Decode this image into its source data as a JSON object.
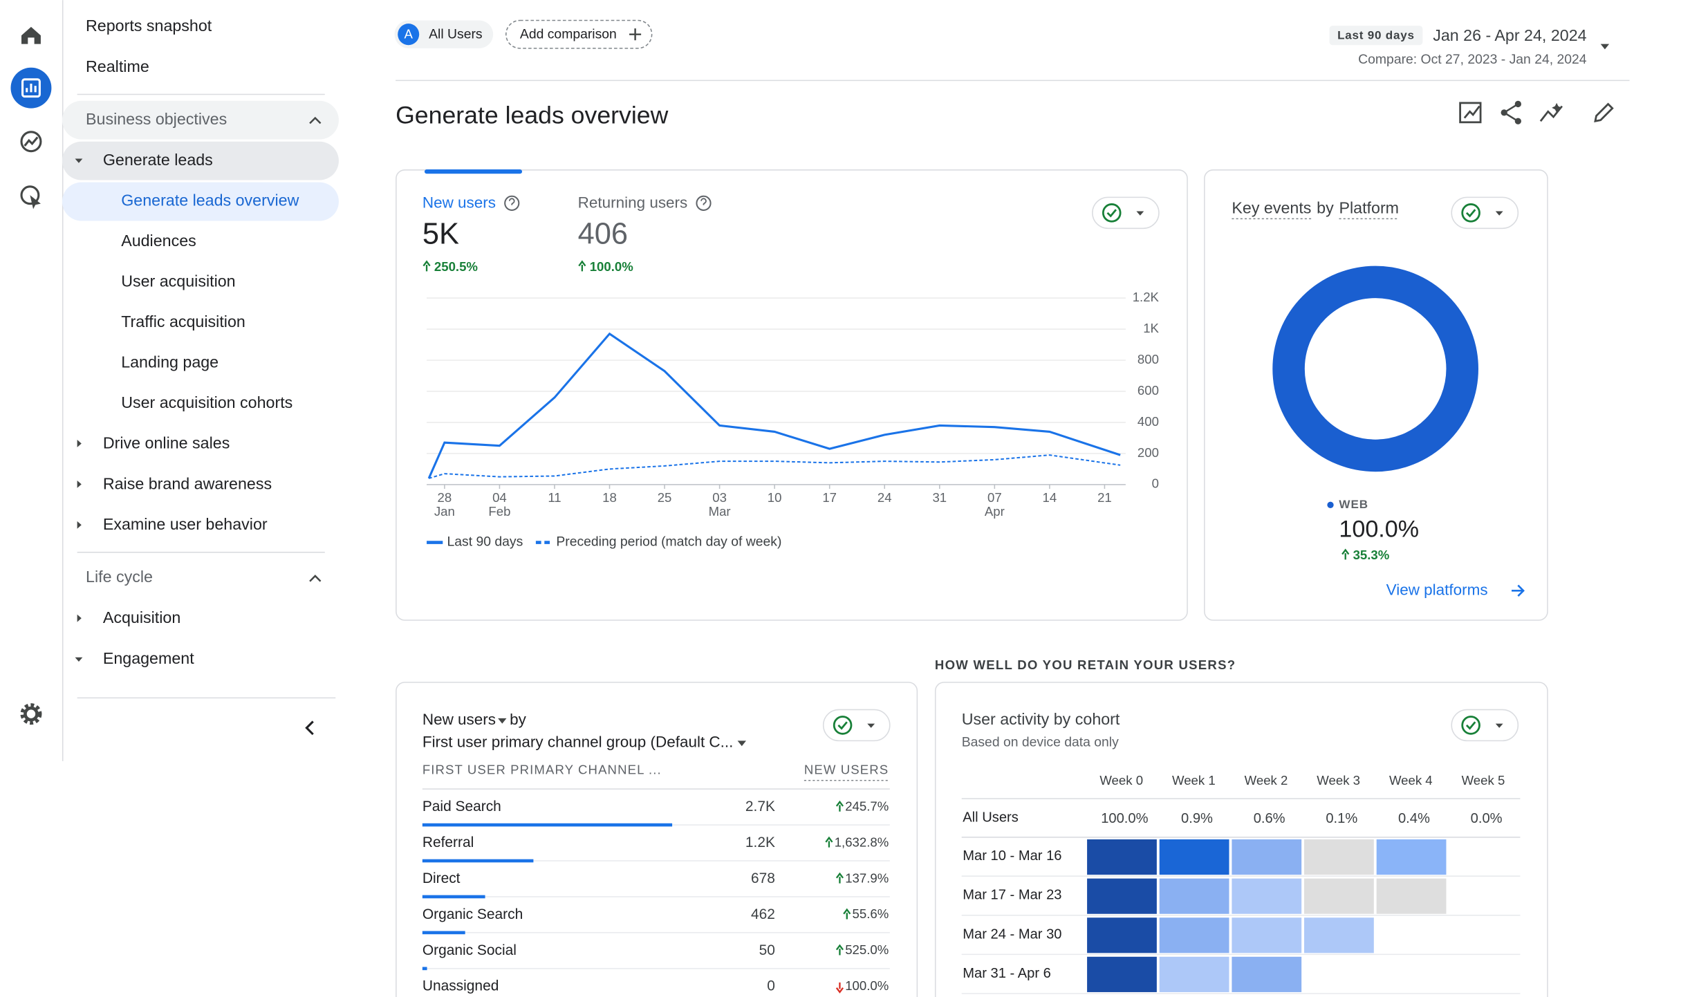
{
  "sidebar": {
    "top": [
      "Reports snapshot",
      "Realtime"
    ],
    "sections": [
      {
        "title": "Business objectives",
        "items": [
          {
            "label": "Generate leads",
            "expanded": true,
            "children": [
              "Generate leads overview",
              "Audiences",
              "User acquisition",
              "Traffic acquisition",
              "Landing page",
              "User acquisition cohorts"
            ]
          },
          {
            "label": "Drive online sales"
          },
          {
            "label": "Raise brand awareness"
          },
          {
            "label": "Examine user behavior"
          }
        ]
      },
      {
        "title": "Life cycle",
        "items": [
          {
            "label": "Acquisition"
          },
          {
            "label": "Engagement",
            "expanded": true
          }
        ]
      }
    ]
  },
  "header": {
    "segment_badge": "A",
    "segment": "All Users",
    "add_comparison": "Add comparison",
    "range_chip": "Last 90 days",
    "date_range": "Jan 26 - Apr 24, 2024",
    "compare": "Compare: Oct 27, 2023 - Jan 24, 2024"
  },
  "title": "Generate leads overview",
  "users_card": {
    "metrics": [
      {
        "label": "New users",
        "value": "5K",
        "change": "250.5%",
        "direction": "up"
      },
      {
        "label": "Returning users",
        "value": "406",
        "change": "100.0%",
        "direction": "up"
      }
    ],
    "chart": {
      "type": "line",
      "x": [
        0,
        2,
        9,
        16,
        23,
        30,
        37,
        44,
        51,
        58,
        65,
        72,
        79,
        88
      ],
      "xlim": [
        0,
        88
      ],
      "xticks": [
        {
          "value": 2,
          "label": "28"
        },
        {
          "value": 9,
          "label": "04"
        },
        {
          "value": 16,
          "label": "11"
        },
        {
          "value": 23,
          "label": "18"
        },
        {
          "value": 30,
          "label": "25"
        },
        {
          "value": 37,
          "label": "03"
        },
        {
          "value": 44,
          "label": "10"
        },
        {
          "value": 51,
          "label": "17"
        },
        {
          "value": 58,
          "label": "24"
        },
        {
          "value": 65,
          "label": "31"
        },
        {
          "value": 72,
          "label": "07"
        },
        {
          "value": 79,
          "label": "14"
        },
        {
          "value": 86,
          "label": "21"
        }
      ],
      "month_labels": [
        {
          "value": 2,
          "label": "Jan"
        },
        {
          "value": 9,
          "label": "Feb"
        },
        {
          "value": 37,
          "label": "Mar"
        },
        {
          "value": 72,
          "label": "Apr"
        }
      ],
      "ylim": [
        0,
        1200
      ],
      "yticks": [
        0,
        200,
        400,
        600,
        800,
        {
          "value": 1000,
          "label": "1K"
        },
        {
          "value": 1200,
          "label": "1.2K"
        }
      ],
      "grid": true,
      "series": [
        {
          "name": "Last 90 days",
          "color": "#1a73e8",
          "dashed": false,
          "values": [
            40,
            270,
            250,
            560,
            970,
            730,
            380,
            340,
            230,
            320,
            380,
            370,
            340,
            190
          ]
        },
        {
          "name": "Preceding period (match day of week)",
          "color": "#1a73e8",
          "dashed": true,
          "values": [
            40,
            70,
            50,
            55,
            100,
            120,
            150,
            150,
            140,
            150,
            145,
            160,
            190,
            125
          ]
        }
      ]
    }
  },
  "platform_card": {
    "title": [
      "Key events",
      "by",
      "Platform"
    ],
    "chart": {
      "type": "pie",
      "categories": [
        "WEB"
      ],
      "values": [
        100
      ],
      "value_labels": [
        "100.0%"
      ],
      "color": "#1a5fd0"
    },
    "change": "35.3%",
    "direction": "up",
    "link": "View platforms"
  },
  "retention_heading": "HOW WELL DO YOU RETAIN YOUR USERS?",
  "channel_card": {
    "metric": "New users",
    "by": "by",
    "dimension": "First user primary channel group (Default C...",
    "columns": [
      "FIRST USER PRIMARY CHANNEL ...",
      "NEW USERS"
    ],
    "bar_color": "#1a73e8",
    "rows": [
      {
        "name": "Paid Search",
        "value": 2700,
        "value_label": "2.7K",
        "change": "245.7%",
        "direction": "up"
      },
      {
        "name": "Referral",
        "value": 1200,
        "value_label": "1.2K",
        "change": "1,632.8%",
        "direction": "up"
      },
      {
        "name": "Direct",
        "value": 678,
        "value_label": "678",
        "change": "137.9%",
        "direction": "up"
      },
      {
        "name": "Organic Search",
        "value": 462,
        "value_label": "462",
        "change": "55.6%",
        "direction": "up"
      },
      {
        "name": "Organic Social",
        "value": 50,
        "value_label": "50",
        "change": "525.0%",
        "direction": "up"
      },
      {
        "name": "Unassigned",
        "value": 0,
        "value_label": "0",
        "change": "100.0%",
        "direction": "down"
      }
    ]
  },
  "cohort_card": {
    "title": "User activity by cohort",
    "subtitle": "Based on device data only",
    "columns": [
      "Week 0",
      "Week 1",
      "Week 2",
      "Week 3",
      "Week 4",
      "Week 5"
    ],
    "all_users": {
      "label": "All Users",
      "values": [
        "100.0%",
        "0.9%",
        "0.6%",
        "0.1%",
        "0.4%",
        "0.0%"
      ]
    },
    "rows": [
      {
        "label": "Mar 10 - Mar 16",
        "colors": [
          "#1a4ca6",
          "#1a66d6",
          "#8ab0f2",
          "#dedede",
          "#8ab4f8",
          null
        ]
      },
      {
        "label": "Mar 17 - Mar 23",
        "colors": [
          "#1a4ca6",
          "#8ab0f2",
          "#adc8f8",
          "#dedede",
          "#dedede"
        ]
      },
      {
        "label": "Mar 24 - Mar 30",
        "colors": [
          "#1a4ca6",
          "#8ab0f2",
          "#adc8f8",
          "#adc8f8"
        ]
      },
      {
        "label": "Mar 31 - Apr 6",
        "colors": [
          "#1a4ca6",
          "#adc8f8",
          "#8ab0f2"
        ]
      }
    ]
  }
}
